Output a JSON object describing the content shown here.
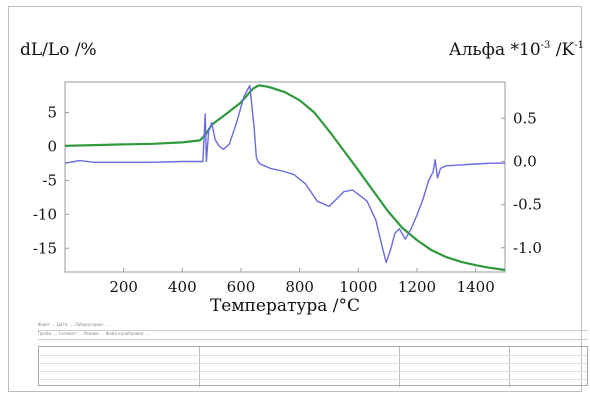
{
  "chart_data": {
    "type": "line",
    "title": "",
    "left_axis_label": "dL/Lo /%",
    "right_axis_label": "Альфа *10",
    "right_axis_label_exp": "-3",
    "right_axis_label_tail": " /K",
    "right_axis_label_exp2": "-1",
    "xlabel": "Температура /°C",
    "xlim": [
      0,
      1500
    ],
    "ylim_left": [
      -18.5,
      9.5
    ],
    "ylim_right": [
      -1.28,
      0.92
    ],
    "x_ticks": [
      "200",
      "400",
      "600",
      "800",
      "1000",
      "1200",
      "1400"
    ],
    "y_left_ticks": [
      "5",
      "0",
      "-5",
      "-10",
      "-15"
    ],
    "y_right_ticks": [
      "0.5",
      "0.0",
      "-0.5",
      "-1.0"
    ],
    "grid": false,
    "series": [
      {
        "axis": "left",
        "color": "#2e9a3c",
        "x": [
          0,
          100,
          200,
          300,
          400,
          460,
          480,
          500,
          550,
          600,
          640,
          660,
          680,
          700,
          750,
          800,
          850,
          900,
          950,
          1000,
          1050,
          1100,
          1150,
          1200,
          1250,
          1300,
          1350,
          1400,
          1450,
          1500
        ],
        "values": [
          0.1,
          0.2,
          0.3,
          0.4,
          0.6,
          0.9,
          1.8,
          3.2,
          4.8,
          6.5,
          8.5,
          9.0,
          8.9,
          8.7,
          8.0,
          6.8,
          5.0,
          2.3,
          -0.6,
          -3.5,
          -6.5,
          -9.5,
          -12.0,
          -13.8,
          -15.3,
          -16.3,
          -17.0,
          -17.5,
          -17.9,
          -18.2
        ]
      },
      {
        "axis": "right",
        "color": "#6a6ae0",
        "x": [
          0,
          50,
          100,
          200,
          300,
          400,
          470,
          478,
          482,
          490,
          500,
          512,
          525,
          540,
          560,
          585,
          610,
          630,
          645,
          652,
          658,
          665,
          680,
          700,
          740,
          780,
          820,
          860,
          900,
          930,
          950,
          980,
          1000,
          1030,
          1060,
          1080,
          1095,
          1110,
          1125,
          1140,
          1160,
          1180,
          1200,
          1220,
          1240,
          1255,
          1262,
          1270,
          1280,
          1300,
          1350,
          1400,
          1450,
          1500
        ],
        "values": [
          -0.02,
          0.01,
          -0.01,
          -0.01,
          -0.01,
          0.0,
          0.0,
          0.55,
          0.0,
          0.35,
          0.45,
          0.25,
          0.18,
          0.14,
          0.2,
          0.45,
          0.75,
          0.88,
          0.38,
          0.05,
          0.0,
          -0.03,
          -0.05,
          -0.08,
          -0.11,
          -0.15,
          -0.26,
          -0.46,
          -0.52,
          -0.42,
          -0.35,
          -0.33,
          -0.38,
          -0.46,
          -0.68,
          -0.97,
          -1.17,
          -1.02,
          -0.83,
          -0.78,
          -0.9,
          -0.78,
          -0.62,
          -0.44,
          -0.22,
          -0.12,
          0.02,
          -0.19,
          -0.08,
          -0.05,
          -0.04,
          -0.03,
          -0.02,
          -0.02
        ]
      }
    ]
  },
  "footer": {
    "line1": "Файл: ... Дата: ... Лаборатория: ...",
    "line2": "Проба: ... Сегмент: ... Режим: ... Файл калибровки: ..."
  }
}
